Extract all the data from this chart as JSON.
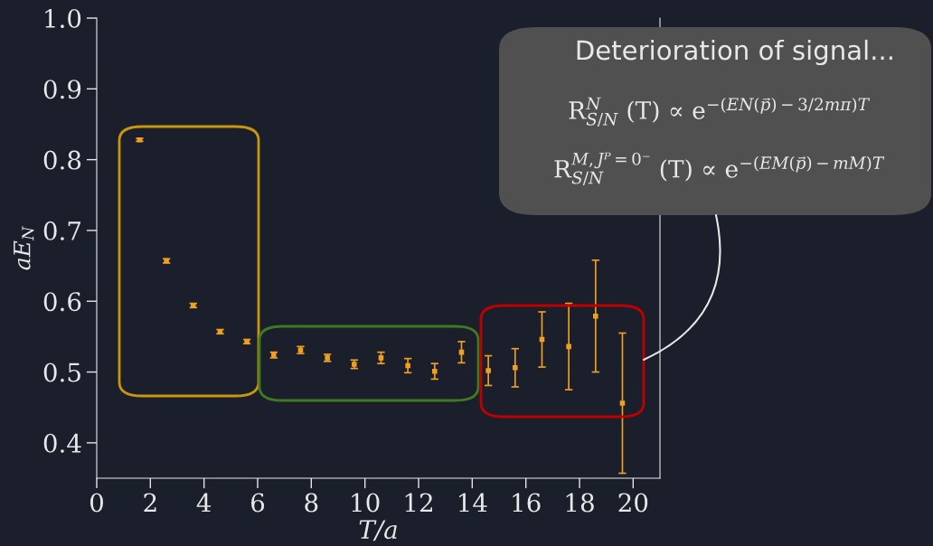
{
  "chart_data": {
    "type": "scatter",
    "xlabel": "T/a",
    "ylabel": "aE$_{N}$",
    "x": [
      1.6,
      2.6,
      3.6,
      4.6,
      5.6,
      6.6,
      7.6,
      8.6,
      9.6,
      10.6,
      11.6,
      12.6,
      13.6,
      14.6,
      15.6,
      16.6,
      17.6,
      18.6,
      19.6
    ],
    "values": [
      0.828,
      0.657,
      0.594,
      0.557,
      0.543,
      0.524,
      0.531,
      0.52,
      0.511,
      0.52,
      0.509,
      0.501,
      0.528,
      0.502,
      0.506,
      0.546,
      0.536,
      0.579,
      0.456
    ],
    "errors": [
      0.002,
      0.003,
      0.003,
      0.003,
      0.003,
      0.004,
      0.005,
      0.005,
      0.006,
      0.008,
      0.01,
      0.011,
      0.015,
      0.021,
      0.027,
      0.039,
      0.061,
      0.079,
      0.099
    ],
    "color": "#f0a020",
    "marker": "square",
    "xlim": [
      0,
      21
    ],
    "ylim": [
      0.35,
      1.0
    ],
    "xticks": [
      0,
      2,
      4,
      6,
      8,
      10,
      12,
      14,
      16,
      18,
      20
    ],
    "yticks": [
      0.4,
      0.5,
      0.6,
      0.7,
      0.8,
      0.9,
      {
        "value": 1.0,
        "label": "1.0"
      }
    ],
    "grid": false,
    "annotations": [
      "Deterioration of signal...",
      "R$^{N}$$_{S/N}$ (T) ∝ e$^{−(EN(p⃗)−3/2mπ)T}$",
      "R$^{M,Jᴾ=0⁻}$$_{S/N}$ (T) ∝ e$^{−(EM(p⃗)−mM)T}$"
    ]
  }
}
